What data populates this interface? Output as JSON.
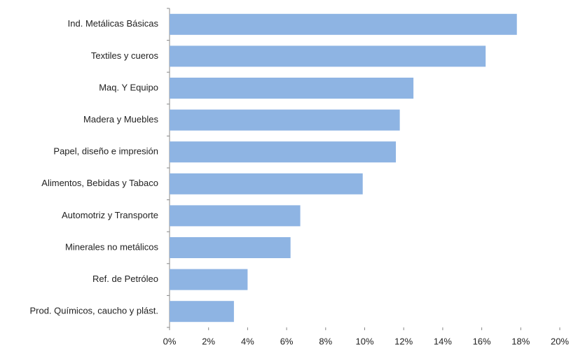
{
  "chart_data": {
    "type": "bar",
    "orientation": "horizontal",
    "categories": [
      "Ind. Metálicas Básicas",
      "Textiles y cueros",
      "Maq. Y Equipo",
      "Madera y Muebles",
      "Papel, diseño e impresión",
      "Alimentos, Bebidas y Tabaco",
      "Automotriz y Transporte",
      "Minerales no metálicos",
      "Ref. de Petróleo",
      "Prod. Químicos, caucho y plást."
    ],
    "values": [
      17.8,
      16.2,
      12.5,
      11.8,
      11.6,
      9.9,
      6.7,
      6.2,
      4.0,
      3.3
    ],
    "color": "#8eb4e3",
    "xlim": [
      0,
      20
    ],
    "xticks": [
      {
        "value": 0,
        "label": "0%"
      },
      {
        "value": 2,
        "label": "2%"
      },
      {
        "value": 4,
        "label": "4%"
      },
      {
        "value": 6,
        "label": "6%"
      },
      {
        "value": 8,
        "label": "8%"
      },
      {
        "value": 10,
        "label": "10%"
      },
      {
        "value": 12,
        "label": "12%"
      },
      {
        "value": 14,
        "label": "14%"
      },
      {
        "value": 16,
        "label": "16%"
      },
      {
        "value": 18,
        "label": "18%"
      },
      {
        "value": 20,
        "label": "20%"
      }
    ],
    "grid": false
  }
}
